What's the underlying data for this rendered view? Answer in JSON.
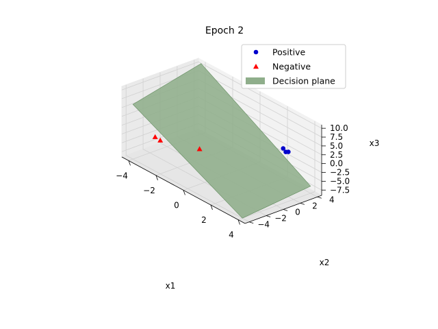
{
  "chart_data": {
    "type": "scatter",
    "projection": "3d",
    "title": "Epoch 2",
    "xlabel": "x1",
    "ylabel": "x2",
    "zlabel": "x3",
    "xlim": [
      -4.5,
      4.5
    ],
    "ylim": [
      -4.5,
      4.5
    ],
    "zlim": [
      -9,
      11
    ],
    "xticks": [
      -4,
      -2,
      0,
      2,
      4
    ],
    "yticks": [
      -4,
      -2,
      0,
      2,
      4
    ],
    "zticks": [
      -7.5,
      -5.0,
      -2.5,
      0.0,
      2.5,
      5.0,
      7.5,
      10.0
    ],
    "xtick_labels": [
      "−4",
      "−2",
      "0",
      "2",
      "4"
    ],
    "ytick_labels": [
      "−4",
      "−2",
      "0",
      "2",
      "4"
    ],
    "ztick_labels": [
      "−7.5",
      "−5.0",
      "−2.5",
      "0.0",
      "2.5",
      "5.0",
      "7.5",
      "10.0"
    ],
    "grid": true,
    "legend_position": "top-right",
    "series": [
      {
        "name": "Positive",
        "marker": "circle",
        "color": "#0000cc",
        "points": [
          [
            3.0,
            3.0,
            1.5
          ],
          [
            2.0,
            4.0,
            -0.5
          ],
          [
            2.5,
            3.5,
            0.0
          ]
        ]
      },
      {
        "name": "Negative",
        "marker": "triangle",
        "color": "#ff0000",
        "points": [
          [
            -3.0,
            -3.0,
            -1.5
          ],
          [
            -2.0,
            -4.0,
            0.5
          ],
          [
            -1.0,
            -1.0,
            -2.5
          ]
        ]
      }
    ],
    "plane": {
      "name": "Decision plane",
      "color": "#8fae8b",
      "edge_color": "#5f8a5b",
      "corners": [
        [
          -4,
          -4,
          6.5
        ],
        [
          -4,
          4,
          11
        ],
        [
          4,
          4,
          -7
        ],
        [
          4,
          -4,
          -9
        ]
      ]
    }
  }
}
